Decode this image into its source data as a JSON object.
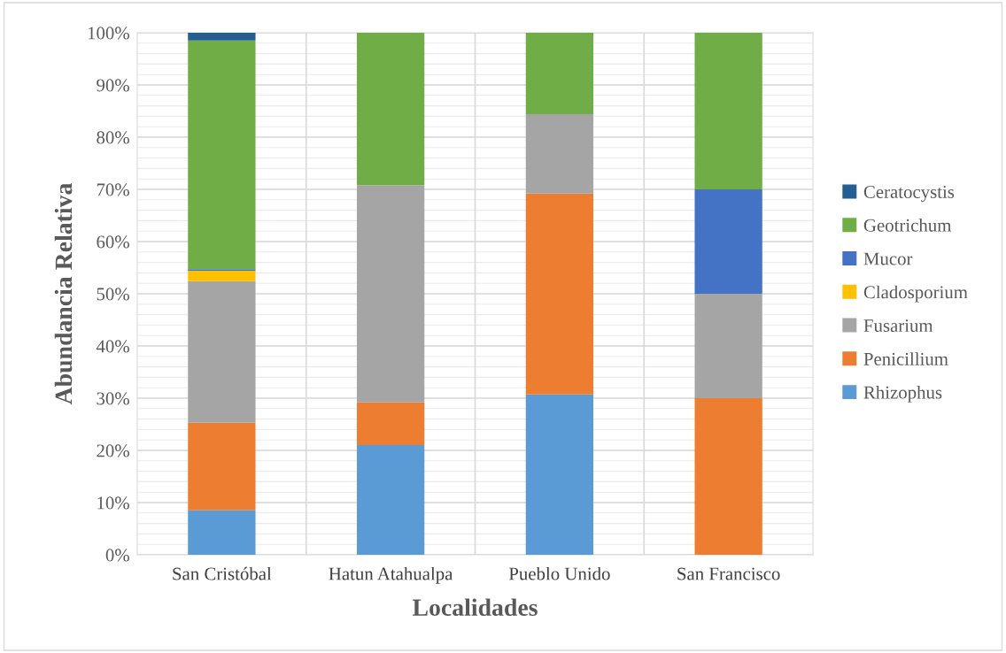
{
  "chart_data": {
    "type": "bar",
    "stacked": true,
    "xlabel": "Localidades",
    "ylabel": "Abundancia Relativa",
    "categories": [
      "San Cristóbal",
      "Hatun Atahualpa",
      "Pueblo Unido",
      "San Francisco"
    ],
    "series": [
      {
        "name": "Rhizophus",
        "color": "#5b9bd5",
        "values": [
          8.5,
          21.0,
          30.7,
          0
        ]
      },
      {
        "name": "Penicillium",
        "color": "#ed7d31",
        "values": [
          16.8,
          8.2,
          38.5,
          30
        ]
      },
      {
        "name": "Fusarium",
        "color": "#a5a5a5",
        "values": [
          27.1,
          41.6,
          15.2,
          20
        ]
      },
      {
        "name": "Cladosporium",
        "color": "#ffc000",
        "values": [
          2.0,
          0,
          0,
          0
        ]
      },
      {
        "name": "Mucor",
        "color": "#4472c4",
        "values": [
          0.3,
          0,
          0,
          20
        ]
      },
      {
        "name": "Geotrichum",
        "color": "#70ad47",
        "values": [
          43.8,
          29.2,
          15.6,
          30
        ]
      },
      {
        "name": "Ceratocystis",
        "color": "#255e91",
        "values": [
          1.5,
          0,
          0,
          0
        ]
      }
    ],
    "ylim": [
      0,
      100
    ],
    "yticks": [
      {
        "value": 0,
        "label": "0%"
      },
      {
        "value": 10,
        "label": "10%"
      },
      {
        "value": 20,
        "label": "20%"
      },
      {
        "value": 30,
        "label": "30%"
      },
      {
        "value": 40,
        "label": "40%"
      },
      {
        "value": 50,
        "label": "50%"
      },
      {
        "value": 60,
        "label": "60%"
      },
      {
        "value": 70,
        "label": "70%"
      },
      {
        "value": 80,
        "label": "80%"
      },
      {
        "value": 90,
        "label": "90%"
      },
      {
        "value": 100,
        "label": "100%"
      }
    ],
    "grid": true,
    "legend": "right"
  }
}
